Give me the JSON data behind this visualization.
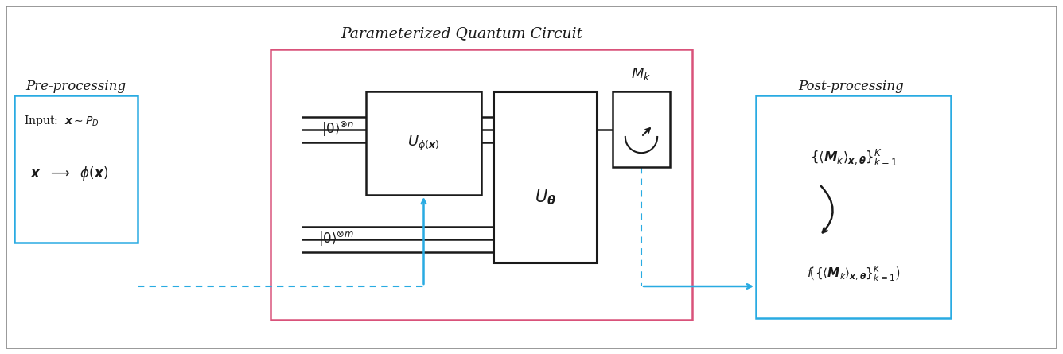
{
  "bg_color": "#ffffff",
  "gray_border": "#888888",
  "cyan": "#29ABE2",
  "pink": "#d9527a",
  "black": "#1a1a1a",
  "title": "Parameterized Quantum Circuit",
  "pre_label": "Pre-processing",
  "post_label": "Post-processing"
}
